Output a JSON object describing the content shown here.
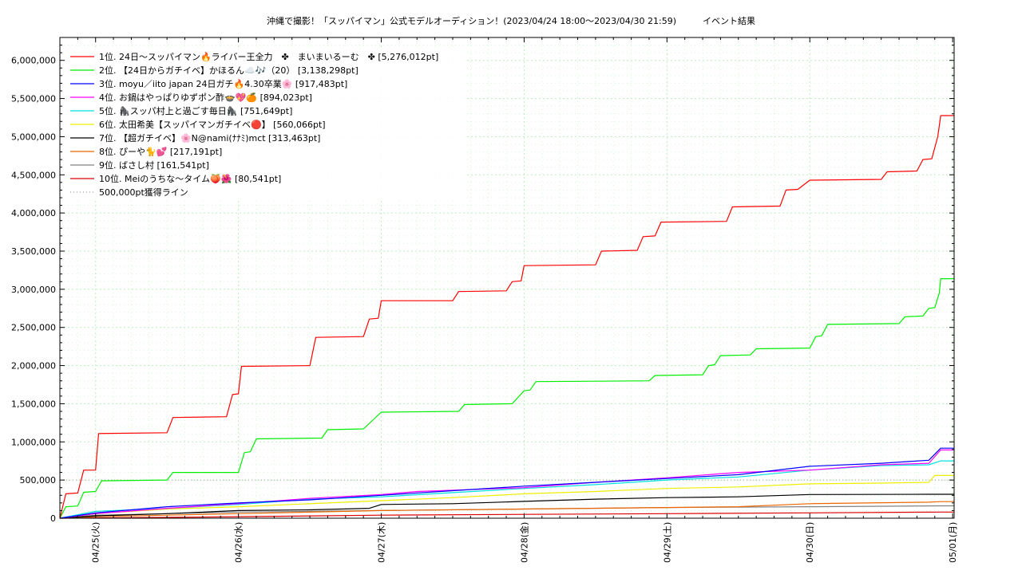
{
  "chart_data": {
    "type": "line",
    "title": "沖縄で撮影！「スッパイマン」公式モデルオーディション！(2023/04/24 18:00〜2023/04/30 21:59)　　　イベント結果",
    "xlabel": "",
    "ylabel": "",
    "ylim": [
      0,
      6300000
    ],
    "xlim": [
      "2023-04-24 18:00",
      "2023-05-01 00:15"
    ],
    "grid": true,
    "legend_position": "top-left",
    "y_ticks": [
      {
        "value": 0,
        "label": "0"
      },
      {
        "value": 500000,
        "label": "500,000"
      },
      {
        "value": 1000000,
        "label": "1,000,000"
      },
      {
        "value": 1500000,
        "label": "1,500,000"
      },
      {
        "value": 2000000,
        "label": "2,000,000"
      },
      {
        "value": 2500000,
        "label": "2,500,000"
      },
      {
        "value": 3000000,
        "label": "3,000,000"
      },
      {
        "value": 3500000,
        "label": "3,500,000"
      },
      {
        "value": 4000000,
        "label": "4,000,000"
      },
      {
        "value": 4500000,
        "label": "4,500,000"
      },
      {
        "value": 5000000,
        "label": "5,000,000"
      },
      {
        "value": 5500000,
        "label": "5,500,000"
      },
      {
        "value": 6000000,
        "label": "6,000,000"
      }
    ],
    "x_ticks": [
      {
        "value": "2023-04-25 00:00",
        "label": "04/25(火)"
      },
      {
        "value": "2023-04-26 00:00",
        "label": "04/26(水)"
      },
      {
        "value": "2023-04-27 00:00",
        "label": "04/27(木)"
      },
      {
        "value": "2023-04-28 00:00",
        "label": "04/28(金)"
      },
      {
        "value": "2023-04-29 00:00",
        "label": "04/29(土)"
      },
      {
        "value": "2023-04-30 00:00",
        "label": "04/30(日)"
      },
      {
        "value": "2023-05-01 00:00",
        "label": "05/01(月)"
      }
    ],
    "reference_line": {
      "name": "500,000pt獲得ライン",
      "value": 500000,
      "color": "#a0a0a0"
    },
    "series": [
      {
        "name": "1位. 24日〜スッパイマン🔥ライバー王全力　✤　まいまいるーむ　✤ [5,276,012pt]",
        "color": "#ff0000",
        "points": [
          [
            "2023-04-24 18:00",
            0
          ],
          [
            "2023-04-24 19:00",
            320000
          ],
          [
            "2023-04-24 21:00",
            330000
          ],
          [
            "2023-04-24 22:00",
            630000
          ],
          [
            "2023-04-25 00:00",
            630000
          ],
          [
            "2023-04-25 00:30",
            1110000
          ],
          [
            "2023-04-25 12:00",
            1120000
          ],
          [
            "2023-04-25 13:00",
            1320000
          ],
          [
            "2023-04-25 22:00",
            1330000
          ],
          [
            "2023-04-25 23:00",
            1620000
          ],
          [
            "2023-04-26 00:00",
            1630000
          ],
          [
            "2023-04-26 00:30",
            1990000
          ],
          [
            "2023-04-26 12:00",
            2000000
          ],
          [
            "2023-04-26 13:00",
            2370000
          ],
          [
            "2023-04-26 21:00",
            2380000
          ],
          [
            "2023-04-26 22:00",
            2610000
          ],
          [
            "2023-04-26 23:30",
            2620000
          ],
          [
            "2023-04-27 00:00",
            2850000
          ],
          [
            "2023-04-27 12:00",
            2850000
          ],
          [
            "2023-04-27 13:00",
            2970000
          ],
          [
            "2023-04-27 21:00",
            2980000
          ],
          [
            "2023-04-27 22:00",
            3100000
          ],
          [
            "2023-04-27 23:30",
            3110000
          ],
          [
            "2023-04-28 00:00",
            3310000
          ],
          [
            "2023-04-28 12:00",
            3320000
          ],
          [
            "2023-04-28 13:00",
            3500000
          ],
          [
            "2023-04-28 19:00",
            3510000
          ],
          [
            "2023-04-28 20:00",
            3690000
          ],
          [
            "2023-04-28 22:00",
            3700000
          ],
          [
            "2023-04-28 23:00",
            3880000
          ],
          [
            "2023-04-29 10:00",
            3890000
          ],
          [
            "2023-04-29 11:00",
            4080000
          ],
          [
            "2023-04-29 19:00",
            4090000
          ],
          [
            "2023-04-29 20:00",
            4300000
          ],
          [
            "2023-04-29 22:00",
            4310000
          ],
          [
            "2023-04-30 00:00",
            4430000
          ],
          [
            "2023-04-30 12:00",
            4440000
          ],
          [
            "2023-04-30 13:00",
            4540000
          ],
          [
            "2023-04-30 18:00",
            4550000
          ],
          [
            "2023-04-30 19:00",
            4700000
          ],
          [
            "2023-04-30 20:30",
            4710000
          ],
          [
            "2023-04-30 21:30",
            5000000
          ],
          [
            "2023-04-30 22:00",
            5276012
          ],
          [
            "2023-05-01 00:15",
            5276012
          ]
        ]
      },
      {
        "name": "2位. 【24日からガチイベ】かほるん☁️🎶（20） [3,138,298pt]",
        "color": "#00ee00",
        "points": [
          [
            "2023-04-24 18:00",
            0
          ],
          [
            "2023-04-24 19:00",
            150000
          ],
          [
            "2023-04-24 21:00",
            160000
          ],
          [
            "2023-04-24 22:00",
            340000
          ],
          [
            "2023-04-25 00:00",
            350000
          ],
          [
            "2023-04-25 01:00",
            490000
          ],
          [
            "2023-04-25 12:00",
            500000
          ],
          [
            "2023-04-25 13:00",
            600000
          ],
          [
            "2023-04-26 00:00",
            600000
          ],
          [
            "2023-04-26 01:00",
            860000
          ],
          [
            "2023-04-26 02:00",
            870000
          ],
          [
            "2023-04-26 03:00",
            1040000
          ],
          [
            "2023-04-26 14:00",
            1050000
          ],
          [
            "2023-04-26 15:00",
            1160000
          ],
          [
            "2023-04-26 21:00",
            1170000
          ],
          [
            "2023-04-27 00:00",
            1390000
          ],
          [
            "2023-04-27 13:00",
            1400000
          ],
          [
            "2023-04-27 14:00",
            1490000
          ],
          [
            "2023-04-27 22:00",
            1500000
          ],
          [
            "2023-04-28 00:00",
            1670000
          ],
          [
            "2023-04-28 01:00",
            1680000
          ],
          [
            "2023-04-28 02:00",
            1790000
          ],
          [
            "2023-04-28 21:00",
            1800000
          ],
          [
            "2023-04-28 22:00",
            1870000
          ],
          [
            "2023-04-29 06:00",
            1880000
          ],
          [
            "2023-04-29 07:00",
            2000000
          ],
          [
            "2023-04-29 08:00",
            2010000
          ],
          [
            "2023-04-29 09:00",
            2130000
          ],
          [
            "2023-04-29 14:00",
            2140000
          ],
          [
            "2023-04-29 15:00",
            2220000
          ],
          [
            "2023-04-30 00:00",
            2230000
          ],
          [
            "2023-04-30 01:00",
            2380000
          ],
          [
            "2023-04-30 02:00",
            2390000
          ],
          [
            "2023-04-30 03:00",
            2540000
          ],
          [
            "2023-04-30 15:00",
            2550000
          ],
          [
            "2023-04-30 16:00",
            2640000
          ],
          [
            "2023-04-30 19:00",
            2650000
          ],
          [
            "2023-04-30 20:00",
            2750000
          ],
          [
            "2023-04-30 21:00",
            2760000
          ],
          [
            "2023-04-30 21:45",
            2950000
          ],
          [
            "2023-04-30 22:00",
            3138298
          ],
          [
            "2023-05-01 00:15",
            3138298
          ]
        ]
      },
      {
        "name": "3位. moyu／iito japan 24日ガチ🔥4.30卒業🌸 [917,483pt]",
        "color": "#0000ff",
        "points": [
          [
            "2023-04-24 18:00",
            0
          ],
          [
            "2023-04-25 00:00",
            70000
          ],
          [
            "2023-04-25 12:00",
            150000
          ],
          [
            "2023-04-26 00:00",
            200000
          ],
          [
            "2023-04-26 12:00",
            240000
          ],
          [
            "2023-04-27 00:00",
            300000
          ],
          [
            "2023-04-27 12:00",
            360000
          ],
          [
            "2023-04-28 00:00",
            420000
          ],
          [
            "2023-04-28 12:00",
            470000
          ],
          [
            "2023-04-29 00:00",
            520000
          ],
          [
            "2023-04-29 12:00",
            570000
          ],
          [
            "2023-04-30 00:00",
            680000
          ],
          [
            "2023-04-30 12:00",
            720000
          ],
          [
            "2023-04-30 20:00",
            760000
          ],
          [
            "2023-04-30 22:00",
            917483
          ],
          [
            "2023-05-01 00:15",
            917483
          ]
        ]
      },
      {
        "name": "4位. お鍋はやっぱりゆずポン酢🍲💖🍊 [894,023pt]",
        "color": "#ff00ff",
        "points": [
          [
            "2023-04-24 18:00",
            0
          ],
          [
            "2023-04-25 00:00",
            60000
          ],
          [
            "2023-04-25 12:00",
            130000
          ],
          [
            "2023-04-26 00:00",
            190000
          ],
          [
            "2023-04-26 12:00",
            260000
          ],
          [
            "2023-04-27 00:00",
            310000
          ],
          [
            "2023-04-27 06:00",
            350000
          ],
          [
            "2023-04-28 00:00",
            400000
          ],
          [
            "2023-04-28 12:00",
            470000
          ],
          [
            "2023-04-29 00:00",
            530000
          ],
          [
            "2023-04-29 12:00",
            600000
          ],
          [
            "2023-04-30 00:00",
            630000
          ],
          [
            "2023-04-30 12:00",
            700000
          ],
          [
            "2023-04-30 20:00",
            720000
          ],
          [
            "2023-04-30 22:00",
            894023
          ],
          [
            "2023-05-01 00:15",
            894023
          ]
        ]
      },
      {
        "name": "5位. 🦍スッパ村上と過ごす毎日🦍 [751,649pt]",
        "color": "#00e0e0",
        "points": [
          [
            "2023-04-24 18:00",
            0
          ],
          [
            "2023-04-25 00:00",
            90000
          ],
          [
            "2023-04-25 12:00",
            130000
          ],
          [
            "2023-04-26 00:00",
            180000
          ],
          [
            "2023-04-26 12:00",
            250000
          ],
          [
            "2023-04-27 00:00",
            280000
          ],
          [
            "2023-04-28 00:00",
            390000
          ],
          [
            "2023-04-28 12:00",
            440000
          ],
          [
            "2023-04-29 00:00",
            500000
          ],
          [
            "2023-04-29 12:00",
            540000
          ],
          [
            "2023-04-30 00:00",
            630000
          ],
          [
            "2023-04-30 12:00",
            690000
          ],
          [
            "2023-04-30 20:00",
            700000
          ],
          [
            "2023-04-30 22:00",
            751649
          ],
          [
            "2023-05-01 00:15",
            751649
          ]
        ]
      },
      {
        "name": "6位. 太田希美【スッパイマンガチイベ🔴】 [560,066pt]",
        "color": "#eeee00",
        "points": [
          [
            "2023-04-24 18:00",
            0
          ],
          [
            "2023-04-25 00:00",
            60000
          ],
          [
            "2023-04-25 12:00",
            120000
          ],
          [
            "2023-04-26 00:00",
            150000
          ],
          [
            "2023-04-27 00:00",
            230000
          ],
          [
            "2023-04-27 12:00",
            270000
          ],
          [
            "2023-04-28 00:00",
            320000
          ],
          [
            "2023-04-28 12:00",
            350000
          ],
          [
            "2023-04-29 00:00",
            390000
          ],
          [
            "2023-04-29 12:00",
            410000
          ],
          [
            "2023-04-30 00:00",
            450000
          ],
          [
            "2023-04-30 12:00",
            460000
          ],
          [
            "2023-04-30 20:00",
            470000
          ],
          [
            "2023-04-30 21:00",
            560066
          ],
          [
            "2023-05-01 00:15",
            560066
          ]
        ]
      },
      {
        "name": "7位. 【超ガチイベ】🌸N@nami(ﾅﾅﾐ)mct [313,463pt]",
        "color": "#000000",
        "points": [
          [
            "2023-04-24 18:00",
            0
          ],
          [
            "2023-04-25 00:00",
            30000
          ],
          [
            "2023-04-25 12:00",
            60000
          ],
          [
            "2023-04-26 00:00",
            100000
          ],
          [
            "2023-04-26 12:00",
            110000
          ],
          [
            "2023-04-26 22:00",
            130000
          ],
          [
            "2023-04-27 00:00",
            180000
          ],
          [
            "2023-04-27 12:00",
            190000
          ],
          [
            "2023-04-28 00:00",
            220000
          ],
          [
            "2023-04-28 12:00",
            250000
          ],
          [
            "2023-04-29 00:00",
            270000
          ],
          [
            "2023-04-29 12:00",
            280000
          ],
          [
            "2023-04-30 00:00",
            310000
          ],
          [
            "2023-04-30 20:00",
            313463
          ],
          [
            "2023-05-01 00:15",
            313463
          ]
        ]
      },
      {
        "name": "8位. ぴーや🐈💕 [217,191pt]",
        "color": "#ee6600",
        "points": [
          [
            "2023-04-24 18:00",
            0
          ],
          [
            "2023-04-25 00:00",
            20000
          ],
          [
            "2023-04-25 12:00",
            40000
          ],
          [
            "2023-04-26 00:00",
            60000
          ],
          [
            "2023-04-27 00:00",
            100000
          ],
          [
            "2023-04-28 00:00",
            120000
          ],
          [
            "2023-04-29 00:00",
            140000
          ],
          [
            "2023-04-29 12:00",
            150000
          ],
          [
            "2023-04-30 00:00",
            190000
          ],
          [
            "2023-04-30 20:00",
            210000
          ],
          [
            "2023-04-30 22:00",
            217191
          ],
          [
            "2023-05-01 00:15",
            217191
          ]
        ]
      },
      {
        "name": "9位. ばさし村 [161,541pt]",
        "color": "#808080",
        "points": [
          [
            "2023-04-24 18:00",
            0
          ],
          [
            "2023-04-25 00:00",
            40000
          ],
          [
            "2023-04-25 12:00",
            60000
          ],
          [
            "2023-04-26 00:00",
            80000
          ],
          [
            "2023-04-27 00:00",
            100000
          ],
          [
            "2023-04-28 00:00",
            120000
          ],
          [
            "2023-04-29 00:00",
            140000
          ],
          [
            "2023-04-30 00:00",
            150000
          ],
          [
            "2023-04-30 22:00",
            161541
          ],
          [
            "2023-05-01 00:15",
            161541
          ]
        ]
      },
      {
        "name": "10位. Meiのうちな〜タイム🍑🌺 [80,541pt]",
        "color": "#dd0000",
        "points": [
          [
            "2023-04-24 18:00",
            0
          ],
          [
            "2023-04-25 12:00",
            10000
          ],
          [
            "2023-04-26 00:00",
            20000
          ],
          [
            "2023-04-27 00:00",
            40000
          ],
          [
            "2023-04-28 00:00",
            50000
          ],
          [
            "2023-04-29 00:00",
            60000
          ],
          [
            "2023-04-30 00:00",
            70000
          ],
          [
            "2023-04-30 22:00",
            80541
          ],
          [
            "2023-05-01 00:15",
            80541
          ]
        ]
      }
    ]
  }
}
